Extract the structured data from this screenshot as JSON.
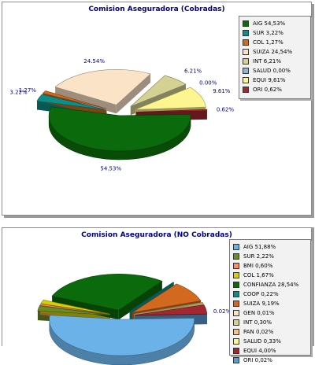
{
  "chart_data": [
    {
      "type": "pie",
      "title": "Comision Aseguradora (Cobradas)",
      "legend_position": "top-right",
      "series": [
        {
          "name": "AIG",
          "value": 54.53,
          "legend": "AIG 54,53%",
          "label": "54.53%",
          "color": "#0b6a0b"
        },
        {
          "name": "SUR",
          "value": 3.22,
          "legend": "SUR 3,22%",
          "label": "3.22%",
          "color": "#0b8f8a"
        },
        {
          "name": "COL",
          "value": 1.27,
          "legend": "COL 1,27%",
          "label": "1.27%",
          "color": "#d2691e"
        },
        {
          "name": "SUIZA",
          "value": 24.54,
          "legend": "SUIZA 24,54%",
          "label": "24.54%",
          "color": "#fbe3c8"
        },
        {
          "name": "INT",
          "value": 6.21,
          "legend": "INT 6,21%",
          "label": "6.21%",
          "color": "#d4d292"
        },
        {
          "name": "SALUD",
          "value": 0.0,
          "legend": "SALUD 0,00%",
          "label": "0.00%",
          "color": "#8fb3d9"
        },
        {
          "name": "EQUI",
          "value": 9.61,
          "legend": "EQUI 9,61%",
          "label": "9.61%",
          "color": "#fdf58f"
        },
        {
          "name": "ORI",
          "value": 0.62,
          "legend": "ORI 0,62%",
          "label": "0.62%",
          "color": "#a3272e"
        }
      ]
    },
    {
      "type": "pie",
      "title": "Comision Aseguradora (NO Cobradas)",
      "legend_position": "top-right",
      "series": [
        {
          "name": "AIG",
          "value": 51.88,
          "legend": "AIG 51,88%",
          "label": "51.88%",
          "color": "#6ab2e8"
        },
        {
          "name": "SUR",
          "value": 2.22,
          "legend": "SUR 2,22%",
          "label": "",
          "color": "#6b8e23"
        },
        {
          "name": "BMI",
          "value": 0.6,
          "legend": "BMI 0,60%",
          "label": "",
          "color": "#ff8c69"
        },
        {
          "name": "COL",
          "value": 1.67,
          "legend": "COL 1,67%",
          "label": "",
          "color": "#d8d000"
        },
        {
          "name": "CONFIANZA",
          "value": 28.54,
          "legend": "CONFIANZA 28,54%",
          "label": "",
          "color": "#0b6a0b"
        },
        {
          "name": "COOP",
          "value": 0.22,
          "legend": "COOP 0,22%",
          "label": "",
          "color": "#0b8f8a"
        },
        {
          "name": "SUIZA",
          "value": 9.19,
          "legend": "SUIZA 9,19%",
          "label": "",
          "color": "#d2691e"
        },
        {
          "name": "GEN",
          "value": 0.01,
          "legend": "GEN 0,01%",
          "label": "",
          "color": "#fbe3c8"
        },
        {
          "name": "INT",
          "value": 0.3,
          "legend": "INT 0,30%",
          "label": "",
          "color": "#d4d292"
        },
        {
          "name": "PAN",
          "value": 0.02,
          "legend": "PAN 0,02%",
          "label": "",
          "color": "#f2c38a"
        },
        {
          "name": "SALUD",
          "value": 0.33,
          "legend": "SALUD 0,33%",
          "label": "",
          "color": "#fdf58f"
        },
        {
          "name": "EQUI",
          "value": 4.0,
          "legend": "EQUI 4,00%",
          "label": "",
          "color": "#a3272e"
        },
        {
          "name": "ORI",
          "value": 0.02,
          "legend": "ORI 0,02%",
          "label": "0.02%",
          "color": "#5b9bd5"
        }
      ]
    }
  ]
}
